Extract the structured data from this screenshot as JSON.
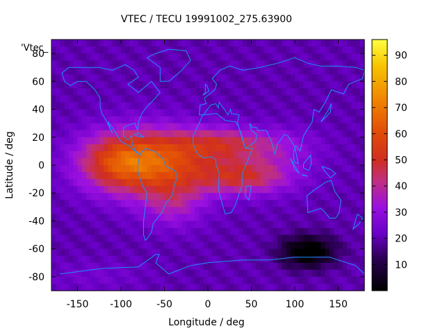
{
  "chart_data": {
    "type": "heatmap",
    "title": "VTEC / TECU 19991002_275.63900",
    "series_key": "'Vtec_",
    "xlabel": "Longitude / deg",
    "ylabel": "Latitude / deg",
    "xlim": [
      -180,
      180
    ],
    "ylim": [
      -90,
      90
    ],
    "xticks": [
      -150,
      -100,
      -50,
      0,
      50,
      100,
      150
    ],
    "yticks": [
      -80,
      -60,
      -40,
      -20,
      0,
      20,
      40,
      60,
      80
    ],
    "colorbar": {
      "range": [
        0,
        96
      ],
      "ticks": [
        10,
        20,
        30,
        40,
        50,
        60,
        70,
        80,
        90
      ],
      "palette": [
        {
          "v": 0,
          "color": "#000000"
        },
        {
          "v": 12,
          "color": "#2a0050"
        },
        {
          "v": 22,
          "color": "#6a00c8"
        },
        {
          "v": 32,
          "color": "#9a10e0"
        },
        {
          "v": 42,
          "color": "#c03080"
        },
        {
          "v": 50,
          "color": "#d02e20"
        },
        {
          "v": 60,
          "color": "#e04a08"
        },
        {
          "v": 72,
          "color": "#f08000"
        },
        {
          "v": 86,
          "color": "#f8c400"
        },
        {
          "v": 96,
          "color": "#ffff40"
        }
      ]
    },
    "field": {
      "grid": "lon -180..180 step 5, lat -90..90 step 5 (approx.)",
      "background": 20,
      "components": [
        {
          "lon": -65,
          "lat": 2,
          "amp": 42,
          "sx": 45,
          "sy": 16
        },
        {
          "lon": -110,
          "lat": 2,
          "amp": 18,
          "sx": 30,
          "sy": 14
        },
        {
          "lon": -40,
          "lat": -28,
          "amp": 14,
          "sx": 25,
          "sy": 12
        },
        {
          "lon": 40,
          "lat": -8,
          "amp": 28,
          "sx": 40,
          "sy": 9
        },
        {
          "lon": 20,
          "lat": 15,
          "amp": 24,
          "sx": 40,
          "sy": 8
        },
        {
          "lon": 90,
          "lat": 12,
          "amp": 8,
          "sx": 30,
          "sy": 10
        },
        {
          "lon": 115,
          "lat": -62,
          "amp": -24,
          "sx": 22,
          "sy": 8
        },
        {
          "lon": -130,
          "lat": -80,
          "amp": 4,
          "sx": 40,
          "sy": 8
        }
      ]
    }
  }
}
